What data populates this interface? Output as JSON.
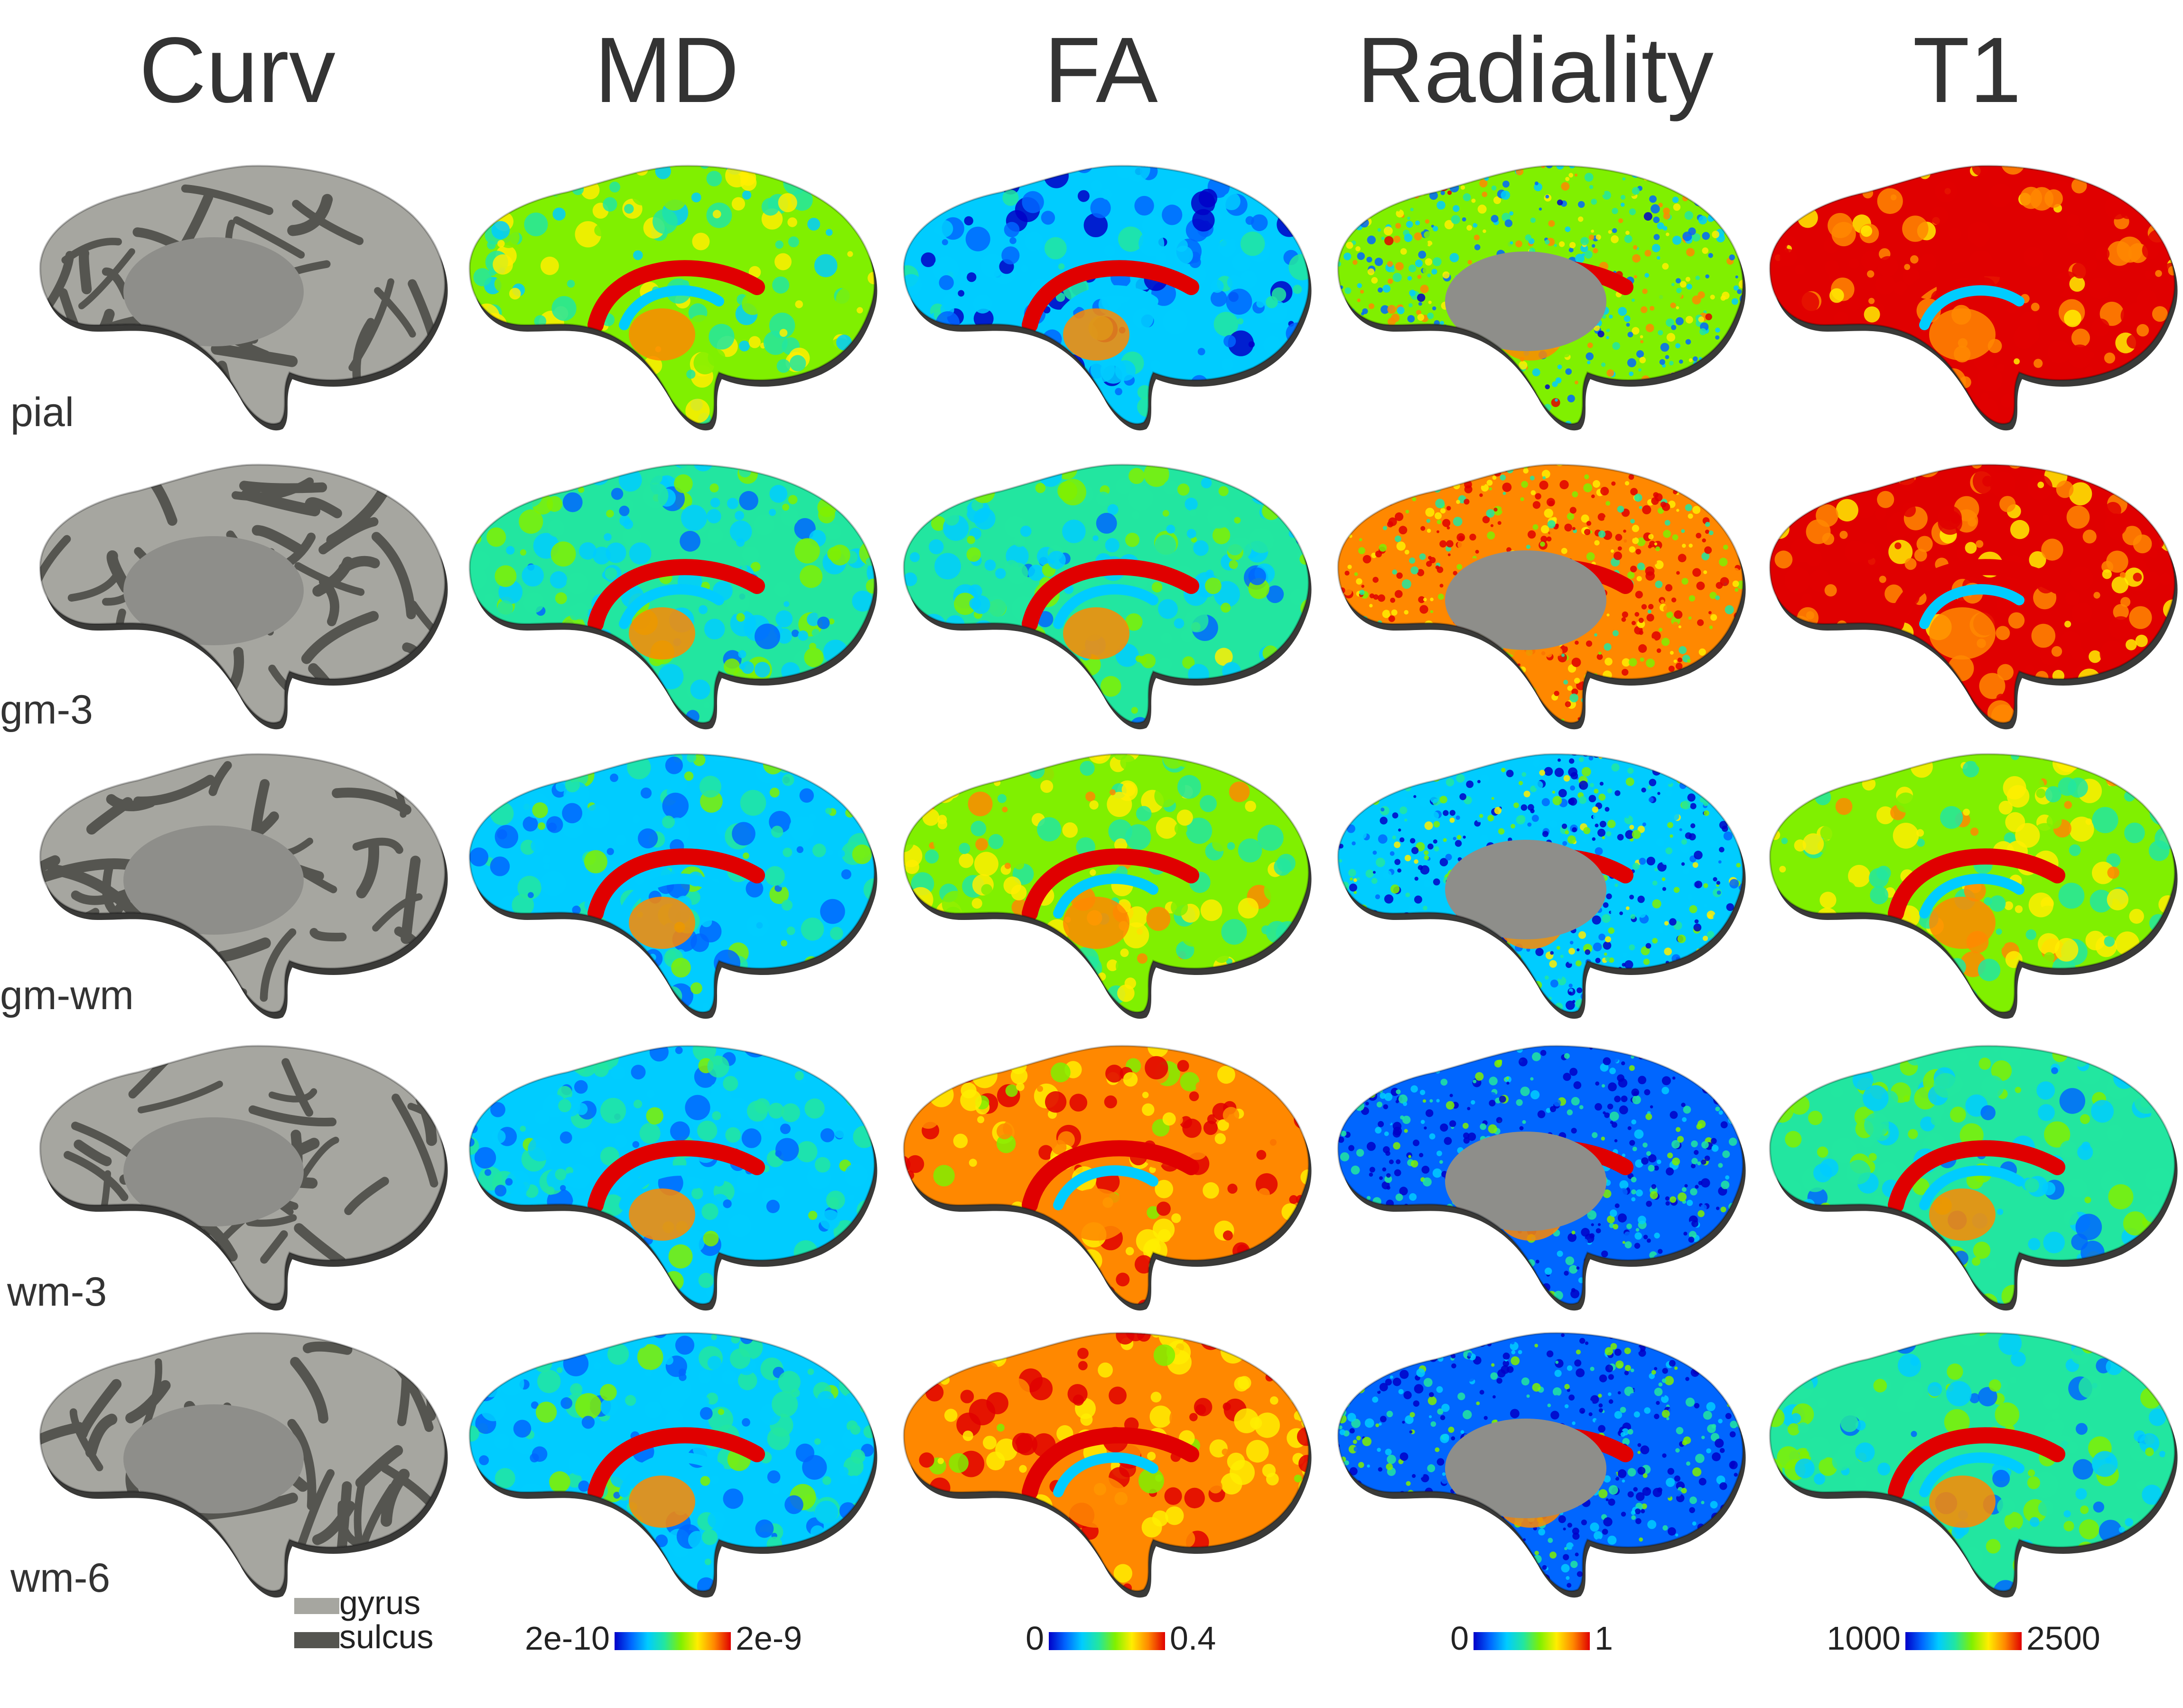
{
  "columns": [
    "Curv",
    "MD",
    "FA",
    "Radiality",
    "T1"
  ],
  "rows": [
    "pial",
    "gm-3",
    "gm-wm",
    "wm-3",
    "wm-6"
  ],
  "curv_legend": {
    "gyrus": "gyrus",
    "sulcus": "sulcus",
    "gyrus_color": "#a6a6a0",
    "sulcus_color": "#555550"
  },
  "colorbars": [
    {
      "column": "MD",
      "min": "2e-10",
      "max": "2e-9"
    },
    {
      "column": "FA",
      "min": "0",
      "max": "0.4"
    },
    {
      "column": "Radiality",
      "min": "0",
      "max": "1"
    },
    {
      "column": "T1",
      "min": "1000",
      "max": "2500"
    }
  ],
  "colormap": [
    "#0000c8",
    "#0066ff",
    "#00ccff",
    "#22e6a0",
    "#80f000",
    "#ffee00",
    "#ff8800",
    "#e00000"
  ],
  "cells": [
    [
      {
        "kind": "curv"
      },
      {
        "kind": "map",
        "v": 0.55
      },
      {
        "kind": "map",
        "v": 0.22
      },
      {
        "kind": "map",
        "v": 0.5,
        "speck": true
      },
      {
        "kind": "map",
        "v": 0.97
      }
    ],
    [
      {
        "kind": "curv"
      },
      {
        "kind": "map",
        "v": 0.38
      },
      {
        "kind": "map",
        "v": 0.42
      },
      {
        "kind": "map",
        "v": 0.85,
        "speck": true
      },
      {
        "kind": "map",
        "v": 0.93
      }
    ],
    [
      {
        "kind": "curv"
      },
      {
        "kind": "map",
        "v": 0.33
      },
      {
        "kind": "map",
        "v": 0.6
      },
      {
        "kind": "map",
        "v": 0.25,
        "speck": true
      },
      {
        "kind": "map",
        "v": 0.62
      }
    ],
    [
      {
        "kind": "curv"
      },
      {
        "kind": "map",
        "v": 0.3
      },
      {
        "kind": "map",
        "v": 0.82
      },
      {
        "kind": "map",
        "v": 0.15,
        "speck": true
      },
      {
        "kind": "map",
        "v": 0.4
      }
    ],
    [
      {
        "kind": "curv"
      },
      {
        "kind": "map",
        "v": 0.3
      },
      {
        "kind": "map",
        "v": 0.85
      },
      {
        "kind": "map",
        "v": 0.15,
        "speck": true
      },
      {
        "kind": "map",
        "v": 0.38
      }
    ]
  ]
}
